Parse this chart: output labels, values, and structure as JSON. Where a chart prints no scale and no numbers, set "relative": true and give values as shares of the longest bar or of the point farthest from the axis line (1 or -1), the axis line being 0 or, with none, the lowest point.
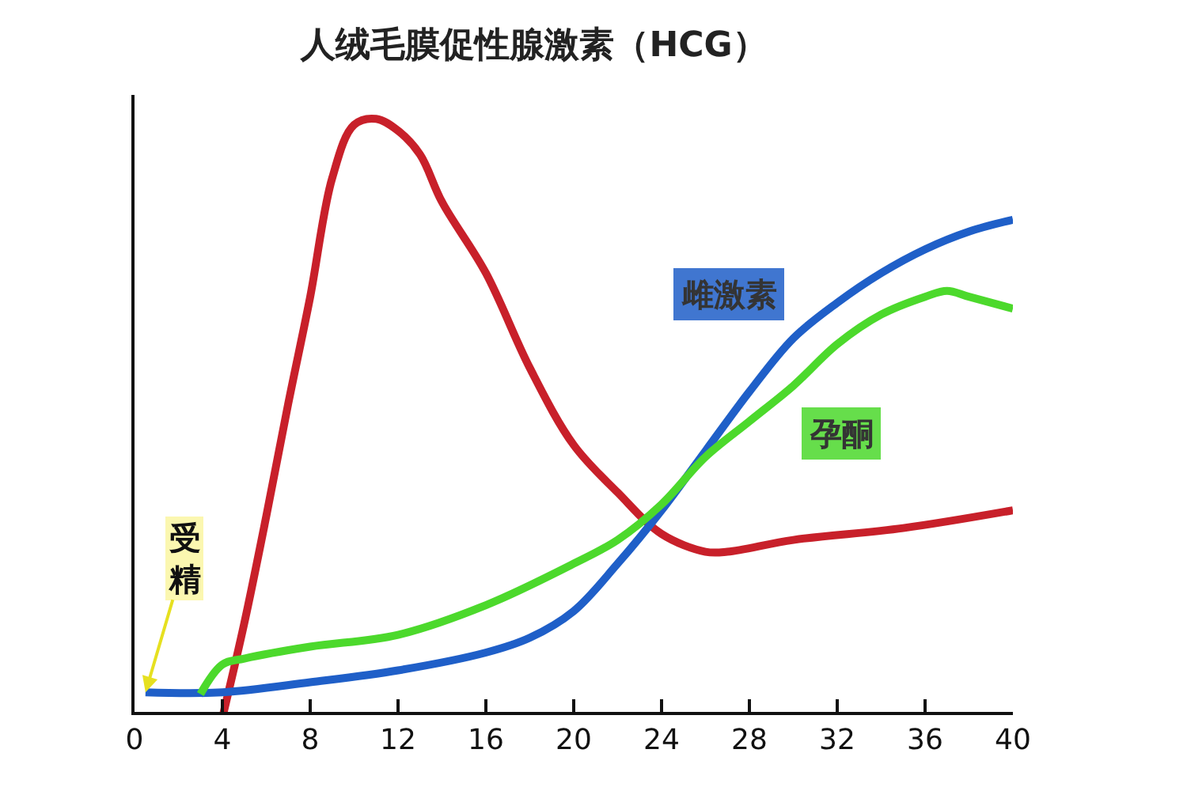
{
  "chart_data": {
    "type": "line",
    "title": "人绒毛膜促性腺激素（HCG）",
    "relative": true,
    "xlim": [
      0,
      40
    ],
    "xticks": [
      0,
      4,
      8,
      12,
      16,
      20,
      24,
      28,
      32,
      36,
      40
    ],
    "series": [
      {
        "color": "#c8202a",
        "x": [
          4,
          5,
          6,
          7,
          8,
          9,
          10,
          11,
          12,
          13,
          14,
          16,
          18,
          20,
          22,
          24,
          26,
          27,
          30,
          35,
          40
        ],
        "values": [
          -0.01,
          0.15,
          0.33,
          0.52,
          0.7,
          0.9,
          0.99,
          1.0,
          0.98,
          0.94,
          0.86,
          0.74,
          0.58,
          0.45,
          0.37,
          0.3,
          0.27,
          0.27,
          0.29,
          0.31,
          0.34
        ]
      },
      {
        "name": "雌激素",
        "color": "#1f5fc8",
        "x": [
          0.5,
          4,
          8,
          12,
          16,
          18,
          20,
          22,
          24,
          26,
          28,
          30,
          32,
          34,
          36,
          38,
          40
        ],
        "values": [
          0.033,
          0.033,
          0.05,
          0.07,
          0.1,
          0.125,
          0.17,
          0.25,
          0.34,
          0.44,
          0.54,
          0.63,
          0.69,
          0.74,
          0.78,
          0.81,
          0.83
        ]
      },
      {
        "name": "孕酮",
        "color": "#4cd92c",
        "x": [
          3,
          4,
          5,
          8,
          12,
          16,
          20,
          22,
          24,
          26,
          28,
          30,
          32,
          34,
          36,
          37,
          38,
          40
        ],
        "values": [
          0.03,
          0.08,
          0.09,
          0.11,
          0.13,
          0.18,
          0.25,
          0.29,
          0.35,
          0.43,
          0.49,
          0.55,
          0.62,
          0.67,
          0.7,
          0.71,
          0.7,
          0.68
        ]
      }
    ],
    "annotations": [
      {
        "text": "受精",
        "x": 0.5,
        "y": 0.033
      }
    ],
    "legend": false
  }
}
